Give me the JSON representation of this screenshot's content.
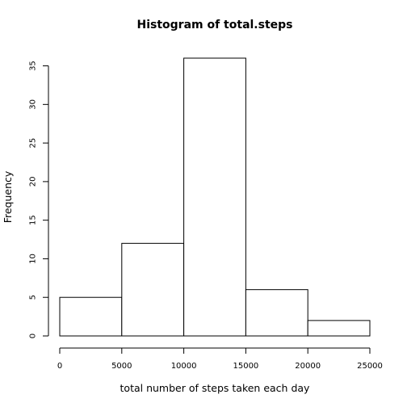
{
  "chart_data": {
    "type": "bar",
    "title": "Histogram of total.steps",
    "xlabel": "total number of steps taken each day",
    "ylabel": "Frequency",
    "bins": [
      {
        "start": 0,
        "end": 5000,
        "count": 5
      },
      {
        "start": 5000,
        "end": 10000,
        "count": 12
      },
      {
        "start": 10000,
        "end": 15000,
        "count": 36
      },
      {
        "start": 15000,
        "end": 20000,
        "count": 6
      },
      {
        "start": 20000,
        "end": 25000,
        "count": 2
      }
    ],
    "xlim": [
      0,
      25000
    ],
    "ylim": [
      0,
      36
    ],
    "x_ticks": [
      0,
      5000,
      10000,
      15000,
      20000,
      25000
    ],
    "y_ticks": [
      0,
      5,
      10,
      15,
      20,
      25,
      30,
      35
    ],
    "grid": false,
    "legend": "none"
  }
}
